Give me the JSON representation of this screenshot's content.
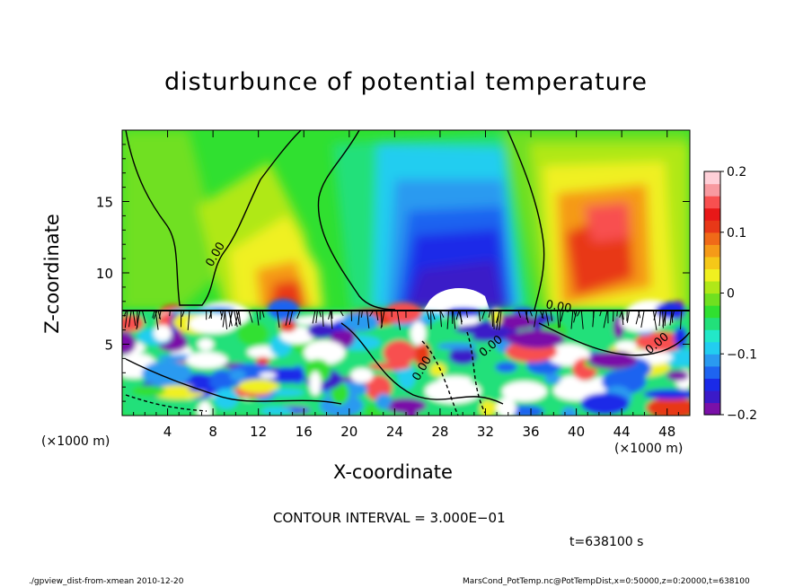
{
  "chart_data": {
    "type": "heatmap",
    "title": "disturbunce of potential temperature",
    "xlabel": "X-coordinate",
    "ylabel": "Z-coordinate",
    "x_unit": "(×1000 m)",
    "xlim": [
      0,
      50
    ],
    "ylim": [
      0,
      20
    ],
    "x_ticks": [
      4,
      8,
      12,
      16,
      20,
      24,
      28,
      32,
      36,
      40,
      44,
      48
    ],
    "y_ticks": [
      5,
      10,
      15
    ],
    "colorbar": {
      "range": [
        -0.2,
        0.2
      ],
      "ticks": [
        0.2,
        0.1,
        0,
        -0.1,
        -0.2
      ],
      "tick_labels": [
        "0.2",
        "0.1",
        "0",
        "−0.1",
        "−0.2"
      ],
      "colors": [
        "#7a10a8",
        "#3b1ac8",
        "#1a2ae8",
        "#1e64f0",
        "#2a9af0",
        "#22cdf0",
        "#22e8c8",
        "#22e07a",
        "#30e030",
        "#70e020",
        "#b0e818",
        "#f0f020",
        "#f5c818",
        "#f59a18",
        "#f06a18",
        "#e83818",
        "#e81818",
        "#f85050",
        "#f89aa0",
        "#ffd0d8"
      ]
    },
    "features": [
      {
        "kind": "cold_anomaly",
        "x_center": 29,
        "z_center": 11,
        "min_value": -0.2
      },
      {
        "kind": "warm_anomaly",
        "x_center": 15,
        "z_center": 8.5,
        "max_value": 0.15
      },
      {
        "kind": "warm_anomaly",
        "x_center": 42,
        "z_center": 12,
        "max_value": 0.17
      }
    ],
    "contour_labels": [
      "0.00",
      "0.00",
      "0.00",
      "0.00",
      "0.00"
    ]
  },
  "contour_note": "CONTOUR INTERVAL = 3.000E−01",
  "time_label": "t=638100 s",
  "footer": {
    "left": "./gpview_dist-from-xmean  2010-12-20",
    "right": "MarsCond_PotTemp.nc@PotTempDist,x=0:50000,z=0:20000,t=638100"
  },
  "colors": {
    "background": "#ffffff",
    "axis": "#000000"
  }
}
